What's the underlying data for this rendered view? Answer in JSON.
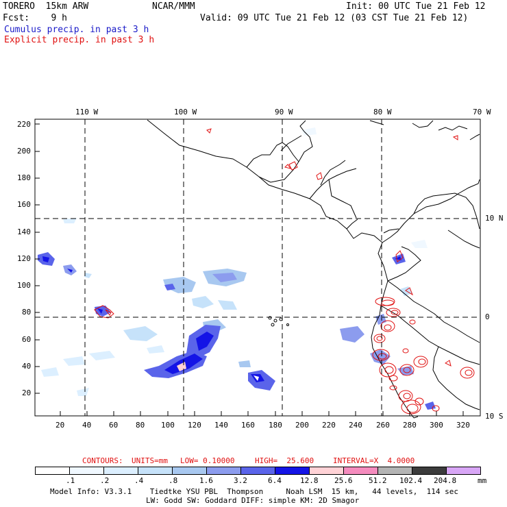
{
  "header": {
    "model": "TORERO  15km ARW",
    "center": "NCAR/MMM",
    "init": "Init: 00 UTC Tue 21 Feb 12",
    "fcst": "Fcst:    9 h",
    "valid": "Valid: 09 UTC Tue 21 Feb 12 (03 CST Tue 21 Feb 12)",
    "cumulus": "Cumulus precip. in past 3 h",
    "explicit": "Explicit precip. in past 3 h"
  },
  "colors": {
    "cumulus_label": "#1a1ac8",
    "explicit_label": "#e01010",
    "explicit_contour": "#e01010"
  },
  "axes": {
    "lon_labels": [
      "110 W",
      "100 W",
      "90 W",
      "80 W",
      "70 W"
    ],
    "lat_labels": [
      "10 N",
      "0",
      "10 S"
    ],
    "y_ticks": [
      "220",
      "200",
      "180",
      "160",
      "140",
      "120",
      "100",
      "80",
      "60",
      "40",
      "20"
    ],
    "x_ticks": [
      "20",
      "40",
      "60",
      "80",
      "100",
      "120",
      "140",
      "160",
      "180",
      "200",
      "220",
      "240",
      "260",
      "280",
      "300",
      "320"
    ]
  },
  "contours": {
    "title": "CONTOURS:",
    "units": "UNITS=mm",
    "low": "LOW= 0.10000",
    "high": "HIGH=  25.600",
    "interval": "INTERVAL=X  4.0000"
  },
  "colorbar": {
    "labels": [
      ".1",
      ".2",
      ".4",
      ".8",
      "1.6",
      "3.2",
      "6.4",
      "12.8",
      "25.6",
      "51.2",
      "102.4",
      "204.8"
    ],
    "unit": "mm",
    "colors": [
      "#ffffff",
      "#f0f8ff",
      "#dcefff",
      "#c6e2fa",
      "#a8c8f0",
      "#8c9cee",
      "#5a64ea",
      "#1414e6",
      "#ffd2d6",
      "#f58cbe",
      "#b4b4b4",
      "#3c3c3c",
      "#d8a6f6"
    ]
  },
  "footer": {
    "line1": "Model Info: V3.3.1    Tiedtke YSU PBL  Thompson     Noah LSM  15 km,   44 levels,  114 sec",
    "line2": "LW: Godd SW: Goddard DIFF: simple KM: 2D Smagor"
  }
}
